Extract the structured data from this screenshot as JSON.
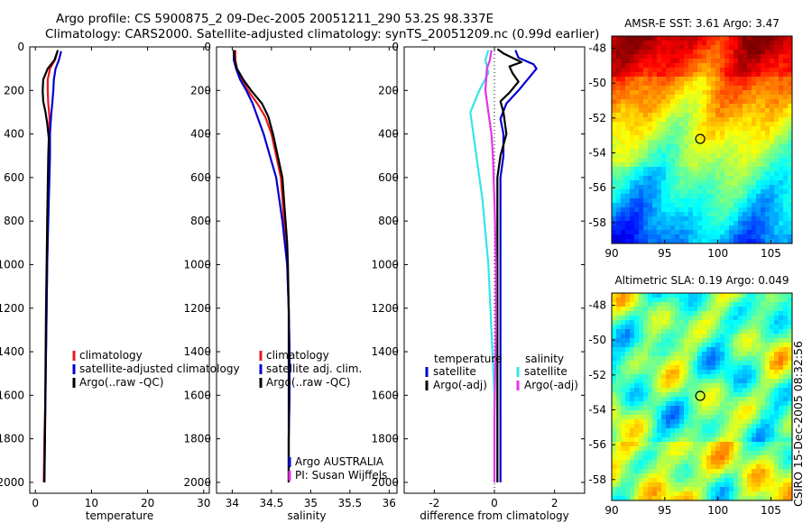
{
  "title": {
    "line1": "Argo profile: CS 5900875_2 09-Dec-2005 20051211_290 53.2S 98.337E",
    "line2": "Climatology: CARS2000. Satellite-adjusted climatology: synTS_20051209.nc (0.99d earlier)"
  },
  "side_label": "CSIRO 15-Dec-2005 08:32:56",
  "colors": {
    "red": "#e41a1c",
    "blue": "#0000d0",
    "black": "#000000",
    "cyan": "#33e6e6",
    "magenta": "#e633e6"
  },
  "chart_data": [
    {
      "id": "temperature",
      "type": "line",
      "xlabel": "temperature",
      "xlim": [
        -1,
        31
      ],
      "ylim": [
        2050,
        0
      ],
      "xticks": [
        0,
        10,
        20,
        30
      ],
      "yticks": [
        0,
        200,
        400,
        600,
        800,
        1000,
        1200,
        1400,
        1600,
        1800,
        2000
      ],
      "legend": {
        "placement": "bottom-right",
        "entries": [
          {
            "text": "climatology",
            "color": "#e41a1c"
          },
          {
            "text": "satellite-adjusted climatology",
            "color": "#0000d0"
          },
          {
            "text": "Argo(..raw -QC)",
            "color": "#000000"
          }
        ]
      },
      "series": [
        {
          "color": "#e41a1c",
          "x": [
            3.9,
            3.5,
            2.6,
            2.2,
            2.2,
            2.3,
            2.5,
            2.5,
            2.4,
            2.3,
            2.2,
            2.1,
            2.0,
            1.9,
            1.8,
            1.6,
            1.5
          ],
          "y": [
            25,
            60,
            100,
            150,
            200,
            260,
            320,
            400,
            500,
            600,
            800,
            1000,
            1200,
            1400,
            1600,
            1800,
            2000
          ]
        },
        {
          "color": "#0000d0",
          "x": [
            4.6,
            4.2,
            3.6,
            3.3,
            3.2,
            3.0,
            2.8,
            2.6,
            2.6,
            2.5,
            2.3,
            2.1,
            2.0,
            1.9,
            1.8,
            1.7,
            1.6
          ],
          "y": [
            20,
            60,
            100,
            150,
            200,
            260,
            320,
            400,
            500,
            600,
            800,
            1000,
            1200,
            1400,
            1600,
            1800,
            2000
          ]
        },
        {
          "color": "#000000",
          "x": [
            4.0,
            3.4,
            2.2,
            1.4,
            1.3,
            1.4,
            1.8,
            2.1,
            2.4,
            2.3,
            2.2,
            2.1,
            2.0,
            1.9,
            1.8,
            1.7,
            1.6
          ],
          "y": [
            15,
            60,
            100,
            150,
            200,
            250,
            300,
            350,
            420,
            500,
            650,
            800,
            1000,
            1200,
            1500,
            1800,
            2000
          ]
        }
      ]
    },
    {
      "id": "salinity",
      "type": "line",
      "xlabel": "salinity",
      "xlim": [
        33.8,
        36.1
      ],
      "ylim": [
        2050,
        0
      ],
      "xticks": [
        34,
        34.5,
        35,
        35.5,
        36
      ],
      "yticks": [
        0,
        200,
        400,
        600,
        800,
        1000,
        1200,
        1400,
        1600,
        1800,
        2000
      ],
      "legend": {
        "placement": "bottom-right",
        "entries": [
          {
            "text": "climatology",
            "color": "#e41a1c"
          },
          {
            "text": "satellite adj. clim.",
            "color": "#0000d0"
          },
          {
            "text": "Argo(..raw -QC)",
            "color": "#000000"
          }
        ]
      },
      "annotation": {
        "lines": [
          "Argo AUSTRALIA",
          "PI: Susan Wijffels"
        ],
        "colors": [
          "#0000d0",
          "#e633e6"
        ]
      },
      "series": [
        {
          "color": "#e41a1c",
          "x": [
            34.04,
            34.04,
            34.06,
            34.12,
            34.2,
            34.32,
            34.42,
            34.5,
            34.56,
            34.62,
            34.66,
            34.7,
            34.72,
            34.73,
            34.73,
            34.72,
            34.72,
            34.72
          ],
          "y": [
            15,
            60,
            100,
            150,
            200,
            260,
            320,
            400,
            500,
            600,
            800,
            1000,
            1200,
            1400,
            1600,
            1800,
            1900,
            2000
          ]
        },
        {
          "color": "#0000d0",
          "x": [
            34.02,
            34.02,
            34.05,
            34.1,
            34.18,
            34.26,
            34.32,
            34.4,
            34.48,
            34.56,
            34.64,
            34.7,
            34.72,
            34.73,
            34.73,
            34.72,
            34.72
          ],
          "y": [
            15,
            60,
            100,
            150,
            200,
            260,
            320,
            400,
            500,
            600,
            800,
            1000,
            1200,
            1400,
            1600,
            1800,
            2000
          ]
        },
        {
          "color": "#000000",
          "x": [
            34.02,
            34.03,
            34.06,
            34.14,
            34.24,
            34.38,
            34.46,
            34.52,
            34.58,
            34.64,
            34.68,
            34.7,
            34.71,
            34.72,
            34.72,
            34.72,
            34.72,
            34.72
          ],
          "y": [
            15,
            60,
            100,
            150,
            200,
            260,
            320,
            400,
            500,
            600,
            800,
            900,
            1000,
            1200,
            1400,
            1600,
            1800,
            2000
          ]
        }
      ]
    },
    {
      "id": "difference",
      "type": "line",
      "xlabel": "difference from climatology",
      "xlim": [
        -3,
        3
      ],
      "ylim": [
        2050,
        0
      ],
      "xticks": [
        -2,
        0,
        2
      ],
      "yticks": [
        0,
        200,
        400,
        600,
        800,
        1000,
        1200,
        1400,
        1600,
        1800,
        2000
      ],
      "legend": {
        "placement": "bottom",
        "left": {
          "title": "temperature",
          "entries": [
            {
              "text": "satellite",
              "color": "#0000d0"
            },
            {
              "text": "Argo(-adj)",
              "color": "#000000"
            }
          ]
        },
        "right": {
          "title": "salinity",
          "entries": [
            {
              "text": "satellite",
              "color": "#33e6e6"
            },
            {
              "text": "Argo(-adj)",
              "color": "#e633e6"
            }
          ]
        }
      },
      "series": [
        {
          "color": "#0000d0",
          "x": [
            0.7,
            0.8,
            1.3,
            1.4,
            1.1,
            0.8,
            0.4,
            0.2,
            0.3,
            0.3,
            0.2,
            0.2,
            0.2,
            0.2,
            0.2,
            0.2,
            0.2
          ],
          "y": [
            15,
            50,
            80,
            100,
            150,
            200,
            260,
            330,
            400,
            500,
            600,
            800,
            1000,
            1200,
            1500,
            1800,
            2000
          ]
        },
        {
          "color": "#000000",
          "x": [
            0.1,
            0.3,
            0.6,
            0.9,
            0.5,
            0.6,
            0.8,
            0.5,
            0.2,
            0.3,
            0.4,
            0.2,
            0.1,
            0.1,
            0.1,
            0.1,
            0.1,
            0.1
          ],
          "y": [
            10,
            30,
            50,
            70,
            90,
            120,
            160,
            210,
            250,
            300,
            400,
            500,
            600,
            800,
            1000,
            1300,
            1600,
            2000
          ]
        },
        {
          "color": "#33e6e6",
          "x": [
            -0.2,
            -0.3,
            -0.2,
            -0.5,
            -0.8,
            -0.7,
            -0.6,
            -0.4,
            -0.2,
            -0.1,
            0.0,
            0.0,
            0.0
          ],
          "y": [
            15,
            60,
            120,
            200,
            300,
            400,
            500,
            700,
            1000,
            1300,
            1600,
            1800,
            2000
          ]
        },
        {
          "color": "#e633e6",
          "x": [
            -0.1,
            -0.15,
            -0.25,
            -0.3,
            -0.2,
            -0.1,
            -0.05,
            0.0,
            0.05,
            0.05,
            0.0,
            0.0
          ],
          "y": [
            15,
            60,
            100,
            200,
            300,
            400,
            500,
            700,
            1000,
            1300,
            1700,
            2000
          ]
        }
      ]
    },
    {
      "id": "sst_map",
      "type": "heatmap",
      "title": "AMSR-E SST: 3.61 Argo: 3.47",
      "xlim": [
        90,
        107
      ],
      "ylim": [
        -59.2,
        -47.3
      ],
      "xticks": [
        90,
        95,
        100,
        105
      ],
      "yticks": [
        -48,
        -50,
        -52,
        -54,
        -56,
        -58
      ],
      "marker": {
        "x": 98.337,
        "y": -53.2
      }
    },
    {
      "id": "sla_map",
      "type": "heatmap",
      "title": "Altimetric SLA: 0.19 Argo: 0.049",
      "xlim": [
        90,
        107
      ],
      "ylim": [
        -59.2,
        -47.3
      ],
      "xticks": [
        90,
        95,
        100,
        105
      ],
      "yticks": [
        -48,
        -50,
        -52,
        -54,
        -56,
        -58
      ],
      "marker": {
        "x": 98.337,
        "y": -53.2
      }
    }
  ]
}
